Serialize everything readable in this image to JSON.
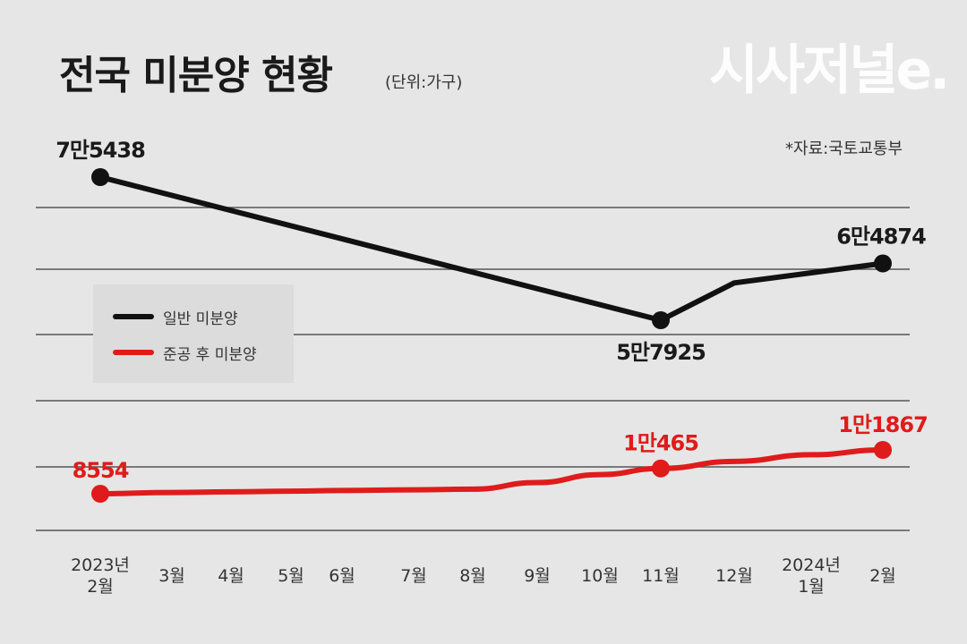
{
  "title": "전국 미분양 현황",
  "unit": "(단위:가구)",
  "brand": "시사저널e.",
  "source": "*자료:국토교통부",
  "legend": [
    {
      "label": "일반 미분양",
      "color": "#111111"
    },
    {
      "label": "준공 후 미분양",
      "color": "#e01b1b"
    }
  ],
  "chart_data": {
    "type": "line",
    "categories": [
      "2023년\n2월",
      "3월",
      "4월",
      "5월",
      "6월",
      "7월",
      "8월",
      "9월",
      "10월",
      "11월",
      "12월",
      "2024년\n1월",
      "2월"
    ],
    "series": [
      {
        "name": "일반 미분양",
        "color": "#111111",
        "values": [
          75438,
          null,
          null,
          null,
          null,
          null,
          null,
          null,
          null,
          57925,
          62489,
          null,
          64874
        ],
        "labels": {
          "0": "7만5438",
          "9": "5만7925",
          "12": "6만4874"
        },
        "marker_indices": [
          0,
          9,
          12
        ]
      },
      {
        "name": "준공 후 미분양",
        "color": "#e01b1b",
        "values": [
          8554,
          8650,
          8700,
          8750,
          8800,
          8850,
          8900,
          9400,
          10000,
          10465,
          11000,
          11500,
          11867
        ],
        "labels": {
          "0": "8554",
          "9": "1만465",
          "12": "1만1867"
        },
        "marker_indices": [
          0,
          9,
          12
        ]
      }
    ],
    "grid": true,
    "legend_position": "left-middle"
  }
}
